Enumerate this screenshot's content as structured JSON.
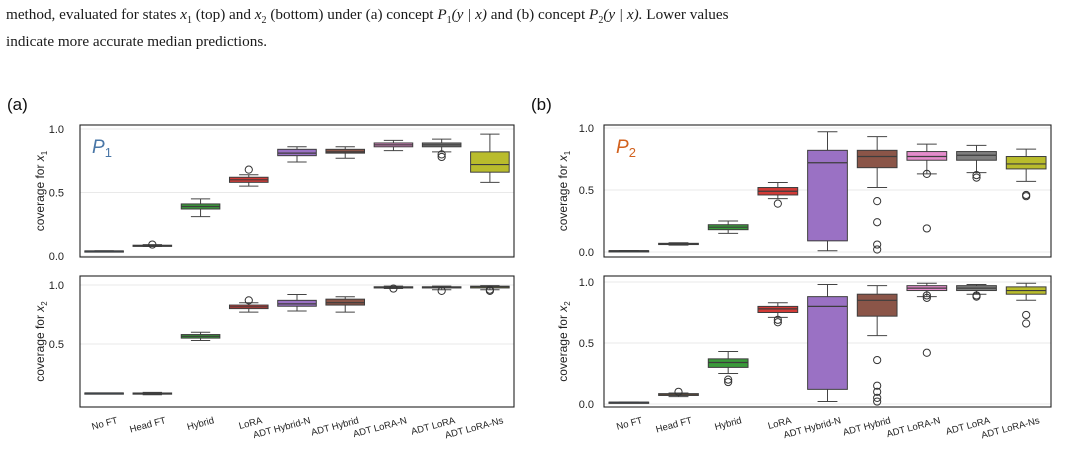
{
  "caption": {
    "line1_lead": "method, evaluated for states",
    "line1_x1": "x",
    "line1_x1_sub": "1",
    "line1_mid1": "(top) and",
    "line1_x2": "x",
    "line1_x2_sub": "2",
    "line1_mid2": "(bottom) under (a) concept",
    "line1_p1": "P",
    "line1_p1_sub": "1",
    "line1_p1_arg": "(y | x)",
    "line1_mid3": "and (b) concept",
    "line1_p2": "P",
    "line1_p2_sub": "2",
    "line1_p2_arg": "(y | x).",
    "line1_tail": "Lower values",
    "line2": "indicate more accurate median predictions."
  },
  "colors": {
    "no_ft": "#4a76a8",
    "head_ft": "#e07f1f",
    "hybrid": "#3a9a3a",
    "lora": "#d23b37",
    "adt_hybrid_n": "#9a71c4",
    "adt_hybrid": "#8b5548",
    "adt_lora_n": "#e58ccc",
    "adt_lora": "#7f7f7f",
    "adt_lora_ns": "#b9bc2c",
    "p1_label": "#4a77a7",
    "p2_label": "#d2621f"
  },
  "chart_data": [
    {
      "type": "box",
      "panel": "(a)",
      "annotation": "P1",
      "ylabel": "coverage for x1",
      "ylim": [
        0.0,
        1.0
      ],
      "yticks": [
        "0.0",
        "0.5",
        "1.0"
      ],
      "categories": [
        "No FT",
        "Head FT",
        "Hybrid",
        "LoRA",
        "ADT Hybrid-N",
        "ADT Hybrid",
        "ADT LoRA-N",
        "ADT LoRA",
        "ADT LoRA-Ns"
      ],
      "boxes": [
        {
          "min": 0.04,
          "q1": 0.04,
          "median": 0.04,
          "q3": 0.04,
          "max": 0.04,
          "outliers": []
        },
        {
          "min": 0.075,
          "q1": 0.08,
          "median": 0.08,
          "q3": 0.085,
          "max": 0.09,
          "outliers": [
            0.09
          ]
        },
        {
          "min": 0.31,
          "q1": 0.37,
          "median": 0.39,
          "q3": 0.41,
          "max": 0.45,
          "outliers": []
        },
        {
          "min": 0.55,
          "q1": 0.58,
          "median": 0.6,
          "q3": 0.62,
          "max": 0.64,
          "outliers": [
            0.68
          ]
        },
        {
          "min": 0.74,
          "q1": 0.79,
          "median": 0.81,
          "q3": 0.84,
          "max": 0.86,
          "outliers": []
        },
        {
          "min": 0.77,
          "q1": 0.81,
          "median": 0.82,
          "q3": 0.84,
          "max": 0.86,
          "outliers": []
        },
        {
          "min": 0.83,
          "q1": 0.86,
          "median": 0.875,
          "q3": 0.89,
          "max": 0.91,
          "outliers": []
        },
        {
          "min": 0.82,
          "q1": 0.86,
          "median": 0.875,
          "q3": 0.89,
          "max": 0.92,
          "outliers": [
            0.8,
            0.78
          ]
        },
        {
          "min": 0.58,
          "q1": 0.66,
          "median": 0.72,
          "q3": 0.82,
          "max": 0.96,
          "outliers": []
        }
      ]
    },
    {
      "type": "box",
      "panel": "(a)",
      "ylabel": "coverage for x2",
      "ylim": [
        0.0,
        1.0
      ],
      "yticks": [
        "0.5",
        "1.0"
      ],
      "categories": [
        "No FT",
        "Head FT",
        "Hybrid",
        "LoRA",
        "ADT Hybrid-N",
        "ADT Hybrid",
        "ADT LoRA-N",
        "ADT LoRA",
        "ADT LoRA-Ns"
      ],
      "boxes": [
        {
          "min": 0.085,
          "q1": 0.085,
          "median": 0.085,
          "q3": 0.085,
          "max": 0.085,
          "outliers": []
        },
        {
          "min": 0.07,
          "q1": 0.075,
          "median": 0.08,
          "q3": 0.085,
          "max": 0.09,
          "outliers": []
        },
        {
          "min": 0.53,
          "q1": 0.55,
          "median": 0.565,
          "q3": 0.58,
          "max": 0.6,
          "outliers": []
        },
        {
          "min": 0.77,
          "q1": 0.8,
          "median": 0.815,
          "q3": 0.83,
          "max": 0.85,
          "outliers": [
            0.87
          ]
        },
        {
          "min": 0.78,
          "q1": 0.82,
          "median": 0.84,
          "q3": 0.87,
          "max": 0.92,
          "outliers": []
        },
        {
          "min": 0.77,
          "q1": 0.83,
          "median": 0.85,
          "q3": 0.88,
          "max": 0.9,
          "outliers": []
        },
        {
          "min": 0.97,
          "q1": 0.975,
          "median": 0.98,
          "q3": 0.985,
          "max": 0.99,
          "outliers": [
            0.97
          ]
        },
        {
          "min": 0.96,
          "q1": 0.975,
          "median": 0.98,
          "q3": 0.985,
          "max": 0.99,
          "outliers": [
            0.95
          ]
        },
        {
          "min": 0.96,
          "q1": 0.975,
          "median": 0.985,
          "q3": 0.99,
          "max": 0.995,
          "outliers": [
            0.96,
            0.95
          ]
        }
      ]
    },
    {
      "type": "box",
      "panel": "(b)",
      "annotation": "P2",
      "ylabel": "coverage for x1",
      "ylim": [
        0.0,
        1.0
      ],
      "yticks": [
        "0.0",
        "0.5",
        "1.0"
      ],
      "categories": [
        "No FT",
        "Head FT",
        "Hybrid",
        "LoRA",
        "ADT Hybrid-N",
        "ADT Hybrid",
        "ADT LoRA-N",
        "ADT LoRA",
        "ADT LoRA-Ns"
      ],
      "boxes": [
        {
          "min": 0.01,
          "q1": 0.01,
          "median": 0.01,
          "q3": 0.01,
          "max": 0.01,
          "outliers": []
        },
        {
          "min": 0.055,
          "q1": 0.06,
          "median": 0.065,
          "q3": 0.07,
          "max": 0.075,
          "outliers": []
        },
        {
          "min": 0.15,
          "q1": 0.18,
          "median": 0.2,
          "q3": 0.22,
          "max": 0.25,
          "outliers": []
        },
        {
          "min": 0.43,
          "q1": 0.46,
          "median": 0.49,
          "q3": 0.52,
          "max": 0.56,
          "outliers": [
            0.39
          ]
        },
        {
          "min": 0.01,
          "q1": 0.09,
          "median": 0.72,
          "q3": 0.82,
          "max": 0.97,
          "outliers": []
        },
        {
          "min": 0.52,
          "q1": 0.68,
          "median": 0.77,
          "q3": 0.82,
          "max": 0.93,
          "outliers": [
            0.41,
            0.24,
            0.06,
            0.02
          ]
        },
        {
          "min": 0.63,
          "q1": 0.74,
          "median": 0.77,
          "q3": 0.81,
          "max": 0.87,
          "outliers": [
            0.63,
            0.19
          ]
        },
        {
          "min": 0.64,
          "q1": 0.74,
          "median": 0.78,
          "q3": 0.81,
          "max": 0.86,
          "outliers": [
            0.62,
            0.6
          ]
        },
        {
          "min": 0.57,
          "q1": 0.67,
          "median": 0.71,
          "q3": 0.77,
          "max": 0.83,
          "outliers": [
            0.46,
            0.45
          ]
        }
      ]
    },
    {
      "type": "box",
      "panel": "(b)",
      "ylabel": "coverage for x2",
      "ylim": [
        0.0,
        1.0
      ],
      "yticks": [
        "0.0",
        "0.5",
        "1.0"
      ],
      "categories": [
        "No FT",
        "Head FT",
        "Hybrid",
        "LoRA",
        "ADT Hybrid-N",
        "ADT Hybrid",
        "ADT LoRA-N",
        "ADT LoRA",
        "ADT LoRA-Ns"
      ],
      "boxes": [
        {
          "min": 0.015,
          "q1": 0.015,
          "median": 0.015,
          "q3": 0.015,
          "max": 0.015,
          "outliers": []
        },
        {
          "min": 0.06,
          "q1": 0.07,
          "median": 0.08,
          "q3": 0.085,
          "max": 0.09,
          "outliers": [
            0.1
          ]
        },
        {
          "min": 0.25,
          "q1": 0.3,
          "median": 0.34,
          "q3": 0.37,
          "max": 0.43,
          "outliers": [
            0.2,
            0.18
          ]
        },
        {
          "min": 0.71,
          "q1": 0.75,
          "median": 0.78,
          "q3": 0.8,
          "max": 0.83,
          "outliers": [
            0.69,
            0.67
          ]
        },
        {
          "min": 0.02,
          "q1": 0.12,
          "median": 0.8,
          "q3": 0.88,
          "max": 0.98,
          "outliers": []
        },
        {
          "min": 0.56,
          "q1": 0.72,
          "median": 0.85,
          "q3": 0.9,
          "max": 0.97,
          "outliers": [
            0.36,
            0.15,
            0.1,
            0.05,
            0.02
          ]
        },
        {
          "min": 0.88,
          "q1": 0.93,
          "median": 0.95,
          "q3": 0.97,
          "max": 0.99,
          "outliers": [
            0.89,
            0.87,
            0.42
          ]
        },
        {
          "min": 0.9,
          "q1": 0.93,
          "median": 0.95,
          "q3": 0.97,
          "max": 0.98,
          "outliers": [
            0.89,
            0.88
          ]
        },
        {
          "min": 0.85,
          "q1": 0.9,
          "median": 0.93,
          "q3": 0.96,
          "max": 0.99,
          "outliers": [
            0.73,
            0.66
          ]
        }
      ]
    }
  ]
}
